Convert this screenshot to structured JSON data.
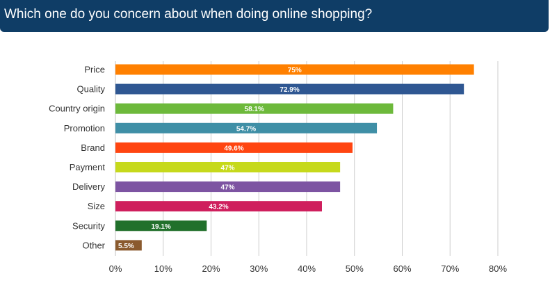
{
  "title": "Which one do you concern about when doing online shopping?",
  "chart_data": {
    "type": "bar",
    "orientation": "horizontal",
    "title": "",
    "xlabel": "",
    "ylabel": "",
    "categories": [
      "Price",
      "Quality",
      "Country origin",
      "Promotion",
      "Brand",
      "Payment",
      "Delivery",
      "Size",
      "Security",
      "Other"
    ],
    "values": [
      75,
      72.9,
      58.1,
      54.7,
      49.6,
      47,
      47,
      43.2,
      19.1,
      5.5
    ],
    "data_labels": [
      "75%",
      "72.9%",
      "58.1%",
      "54.7%",
      "49.6%",
      "47%",
      "47%",
      "43.2%",
      "19.1%",
      "5.5%"
    ],
    "colors": [
      "#ff8000",
      "#2f5792",
      "#6db93b",
      "#3f8fa6",
      "#ff4511",
      "#c6d91c",
      "#7d54a2",
      "#cf1f5d",
      "#21702b",
      "#8a5a2e"
    ],
    "xlim": [
      0,
      80
    ],
    "xticks": [
      0,
      10,
      20,
      30,
      40,
      50,
      60,
      70,
      80
    ],
    "xtick_labels": [
      "0%",
      "10%",
      "20%",
      "30%",
      "40%",
      "50%",
      "60%",
      "70%",
      "80%"
    ],
    "grid": "vertical",
    "legend": "none"
  }
}
